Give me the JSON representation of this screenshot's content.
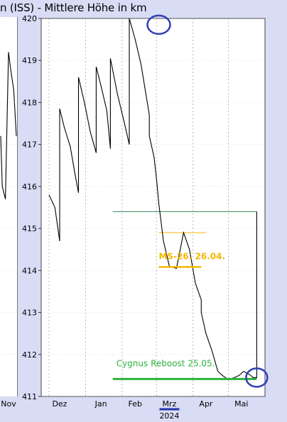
{
  "chart_data": {
    "type": "line",
    "title": "n (ISS) - Mittlere Höhe in km",
    "xlabel": "",
    "ylabel": "",
    "ylim": [
      411,
      420
    ],
    "y_ticks": [
      "420",
      "419",
      "418",
      "417",
      "416",
      "415",
      "414",
      "413",
      "412",
      "411"
    ],
    "x_ticks": [
      "Nov",
      "Dez",
      "Jan",
      "Feb",
      "Mrz",
      "Apr",
      "Mai"
    ],
    "x_highlight": "Mrz",
    "x_year_label": "2024",
    "grid": true,
    "series": [
      {
        "x": [
          "2023-12-01",
          "2023-12-06",
          "2023-12-10",
          "2023-12-10",
          "2023-12-14",
          "2023-12-19",
          "2023-12-23",
          "2023-12-26",
          "2023-12-26",
          "2023-12-31",
          "2024-01-05",
          "2024-01-10",
          "2024-01-10",
          "2024-01-14",
          "2024-01-19",
          "2024-01-22",
          "2024-01-22",
          "2024-01-28",
          "2024-02-03",
          "2024-02-07",
          "2024-02-07",
          "2024-02-12",
          "2024-02-17",
          "2024-02-24",
          "2024-02-24",
          "2024-02-28",
          "2024-03-01",
          "2024-03-03",
          "2024-03-07",
          "2024-03-12",
          "2024-03-18",
          "2024-03-24",
          "2024-03-29",
          "2024-04-03",
          "2024-04-08",
          "2024-04-08",
          "2024-04-12",
          "2024-04-17",
          "2024-04-22",
          "2024-04-26",
          "2024-05-01",
          "2024-05-06",
          "2024-05-10",
          "2024-05-12",
          "2024-05-14",
          "2024-05-17",
          "2024-05-20",
          "2024-05-22",
          "2024-05-25",
          "2024-05-25"
        ],
        "values": [
          415.8,
          415.5,
          414.7,
          417.85,
          417.4,
          416.95,
          416.3,
          415.85,
          418.6,
          418.0,
          417.3,
          416.8,
          418.85,
          418.4,
          417.8,
          416.9,
          419.05,
          418.2,
          417.5,
          417.0,
          420.0,
          419.5,
          418.9,
          417.7,
          417.2,
          416.7,
          416.2,
          415.6,
          414.7,
          414.1,
          414.05,
          414.9,
          414.5,
          413.7,
          413.3,
          413.0,
          412.5,
          412.1,
          411.6,
          411.5,
          411.4,
          411.45,
          411.5,
          411.55,
          411.6,
          411.55,
          411.5,
          411.45,
          411.45,
          415.4
        ],
        "pre_x": [
          "2023-11-01",
          "2023-11-04",
          "2023-11-10",
          "2023-11-16",
          "2023-11-20",
          "2023-11-26",
          "2023-12-01"
        ],
        "pre_values": [
          417.2,
          416.0,
          415.7,
          419.2,
          418.8,
          418.3,
          417.2
        ]
      }
    ],
    "annotations": [
      {
        "text": "MS-26. 26.04.",
        "color": "#f5b800",
        "y": 414.05
      },
      {
        "text": "Cygnus Reboost 25.05.",
        "color": "#2db33c",
        "y": 411.45
      }
    ],
    "reference_lines": [
      {
        "y": 415.4,
        "color": "#2e8b57"
      },
      {
        "y": 414.9,
        "color": "#f5b800"
      }
    ]
  }
}
